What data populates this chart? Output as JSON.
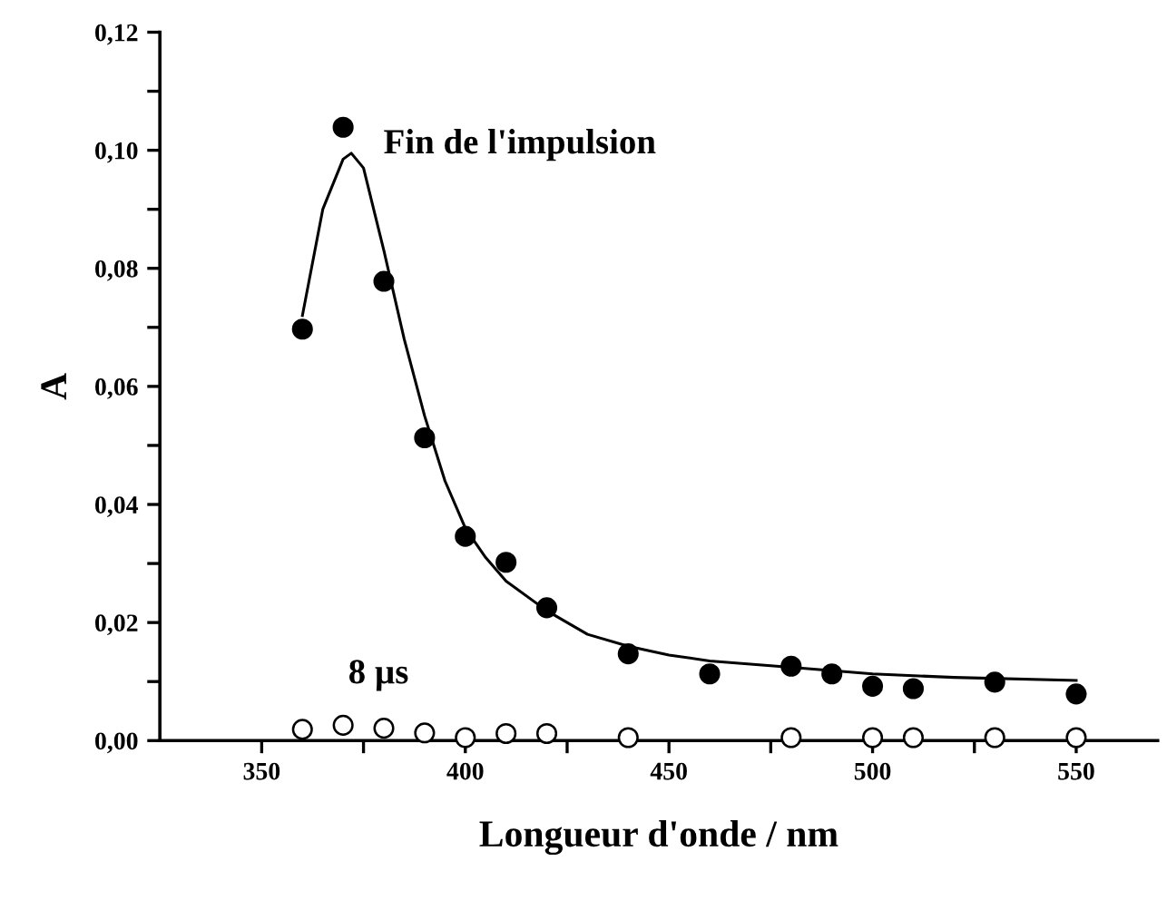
{
  "chart_data": {
    "type": "scatter",
    "xlabel": "Longueur d'onde / nm",
    "ylabel": "A",
    "grid": false,
    "xlim": [
      325,
      570
    ],
    "ylim": [
      0,
      0.12
    ],
    "xticks": [
      350,
      {
        "value": 375,
        "label": null
      },
      400,
      {
        "value": 425,
        "label": null
      },
      450,
      {
        "value": 475,
        "label": null
      },
      500,
      {
        "value": 525,
        "label": null
      },
      550
    ],
    "yticks": [
      {
        "value": 0,
        "label": "0,00"
      },
      {
        "value": 0.01,
        "label": null
      },
      {
        "value": 0.02,
        "label": "0,02"
      },
      {
        "value": 0.03,
        "label": null
      },
      {
        "value": 0.04,
        "label": "0,04"
      },
      {
        "value": 0.05,
        "label": null
      },
      {
        "value": 0.06,
        "label": "0,06"
      },
      {
        "value": 0.07,
        "label": null
      },
      {
        "value": 0.08,
        "label": "0,08"
      },
      {
        "value": 0.09,
        "label": null
      },
      {
        "value": 0.1,
        "label": "0,10"
      },
      {
        "value": 0.11,
        "label": null
      },
      {
        "value": 0.12,
        "label": "0,12"
      }
    ],
    "series": [
      {
        "name": "Fin de l'impulsion",
        "marker": "circle",
        "color": "#000000",
        "x": [
          360,
          370,
          380,
          390,
          400,
          410,
          420,
          440,
          460,
          480,
          490,
          500,
          510,
          530,
          550
        ],
        "values": [
          0.0697,
          0.1039,
          0.0778,
          0.0513,
          0.0346,
          0.0302,
          0.0225,
          0.0147,
          0.0113,
          0.0126,
          0.0113,
          0.0092,
          0.0088,
          0.0099,
          0.0079
        ]
      },
      {
        "name": "8 µs",
        "marker": "circle",
        "color": "#ffffff",
        "x": [
          360,
          370,
          380,
          390,
          400,
          410,
          420,
          440,
          480,
          500,
          510,
          530,
          550
        ],
        "values": [
          0.0019,
          0.0026,
          0.0021,
          0.0013,
          0.0005,
          0.0012,
          0.0012,
          0.0005,
          0.0005,
          0.0005,
          0.0005,
          0.0005,
          0.0005
        ]
      },
      {
        "type": "line",
        "marker": "none",
        "color": "#000000",
        "x": [
          360,
          365,
          370,
          372,
          375,
          380,
          385,
          390,
          395,
          400,
          405,
          410,
          420,
          430,
          440,
          450,
          460,
          480,
          500,
          520,
          550
        ],
        "values": [
          0.072,
          0.09,
          0.0985,
          0.0995,
          0.097,
          0.083,
          0.068,
          0.055,
          0.044,
          0.036,
          0.031,
          0.027,
          0.022,
          0.018,
          0.016,
          0.0145,
          0.0135,
          0.0124,
          0.0113,
          0.0107,
          0.0102
        ]
      }
    ]
  }
}
